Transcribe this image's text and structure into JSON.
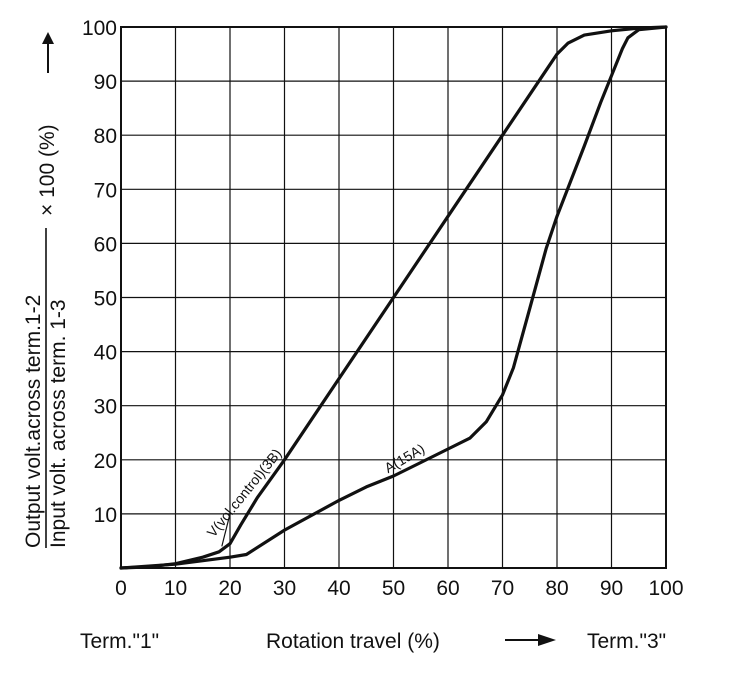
{
  "chart_data": {
    "type": "line",
    "xlim": [
      0,
      100
    ],
    "ylim": [
      0,
      100
    ],
    "grid": true,
    "x_ticks": [
      0,
      10,
      20,
      30,
      40,
      50,
      60,
      70,
      80,
      90,
      100
    ],
    "y_ticks": [
      10,
      20,
      30,
      40,
      50,
      60,
      70,
      80,
      90,
      100
    ],
    "ylabel_numerator": "Output volt.across term.1-2",
    "ylabel_denominator": "Input volt. across term.  1-3",
    "ylabel_suffix": "× 100 (%)",
    "xlabel": "Rotation travel (%)",
    "x_left_label": "Term.\"1\"",
    "x_right_label": "Term.\"3\"",
    "series": [
      {
        "name": "V(vol.control)(3B)",
        "x": [
          0,
          5,
          10,
          15,
          18,
          20,
          22,
          25,
          30,
          40,
          50,
          60,
          70,
          78,
          80,
          82,
          85,
          90,
          95,
          100
        ],
        "y": [
          0,
          0.2,
          0.8,
          2,
          3,
          4.5,
          8,
          13,
          20,
          35,
          50,
          65,
          80,
          92,
          95,
          97,
          98.5,
          99.3,
          99.8,
          100
        ]
      },
      {
        "name": "A(15A)",
        "x": [
          0,
          10,
          20,
          23,
          30,
          40,
          45,
          50,
          55,
          60,
          64,
          67,
          70,
          72,
          75,
          78,
          80,
          85,
          88,
          90,
          92,
          93,
          95,
          100
        ],
        "y": [
          0,
          0.7,
          2,
          2.5,
          7,
          12.5,
          15,
          17,
          19.5,
          22,
          24,
          27,
          32,
          37,
          48,
          59,
          65,
          78,
          86,
          91,
          96,
          98,
          99.5,
          100
        ]
      }
    ]
  }
}
